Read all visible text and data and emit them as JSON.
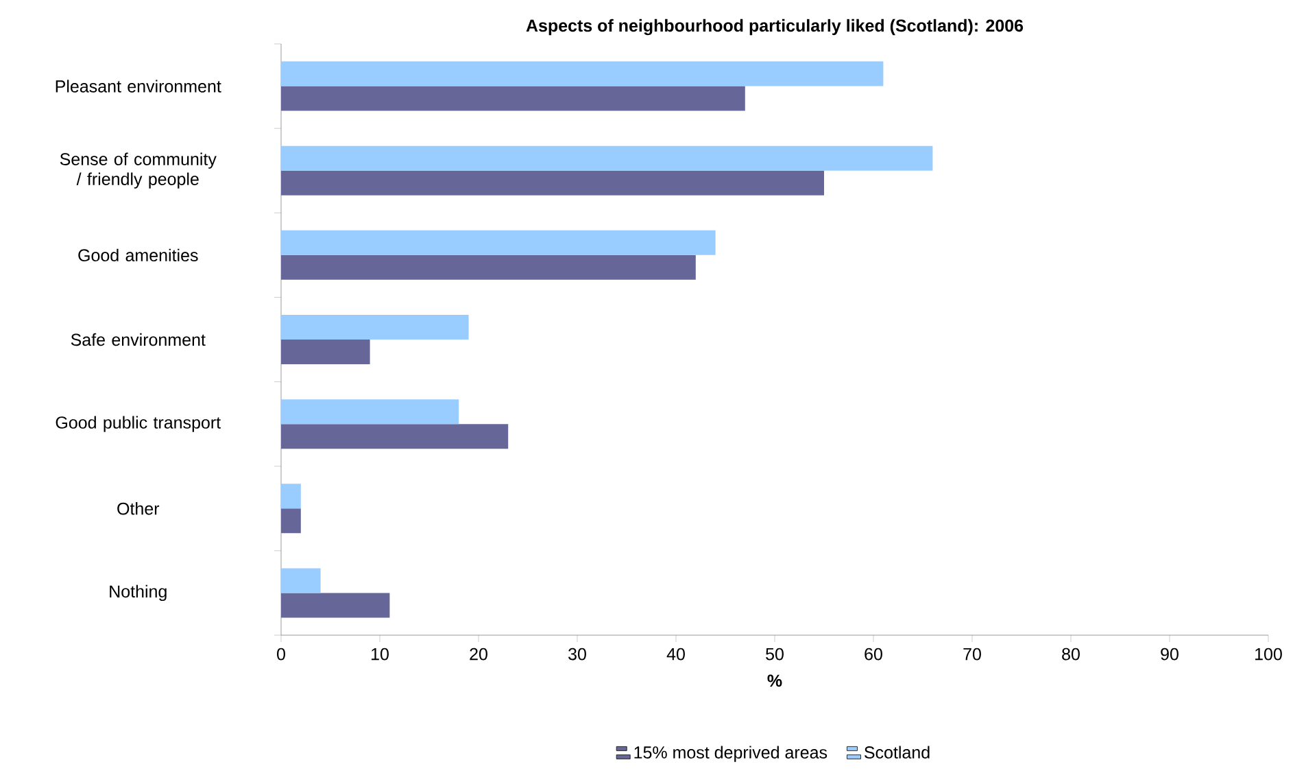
{
  "chart_data": {
    "type": "bar",
    "orientation": "horizontal",
    "title": "Aspects of neighbourhood particularly liked (Scotland): 2006",
    "xlabel": "%",
    "categories": [
      "Pleasant environment",
      "Sense of community / friendly people",
      "Good amenities",
      "Safe environment",
      "Good public transport",
      "Other",
      "Nothing"
    ],
    "series": [
      {
        "name": "15% most deprived areas",
        "color": "#666699",
        "values": [
          47,
          55,
          42,
          9,
          23,
          2,
          11
        ]
      },
      {
        "name": "Scotland",
        "color": "#99ccff",
        "values": [
          61,
          66,
          44,
          19,
          18,
          2,
          4
        ]
      }
    ],
    "xlim": [
      0,
      100
    ],
    "xticks": [
      0,
      10,
      20,
      30,
      40,
      50,
      60,
      70,
      80,
      90,
      100
    ],
    "grid": false,
    "legend": "bottom"
  }
}
